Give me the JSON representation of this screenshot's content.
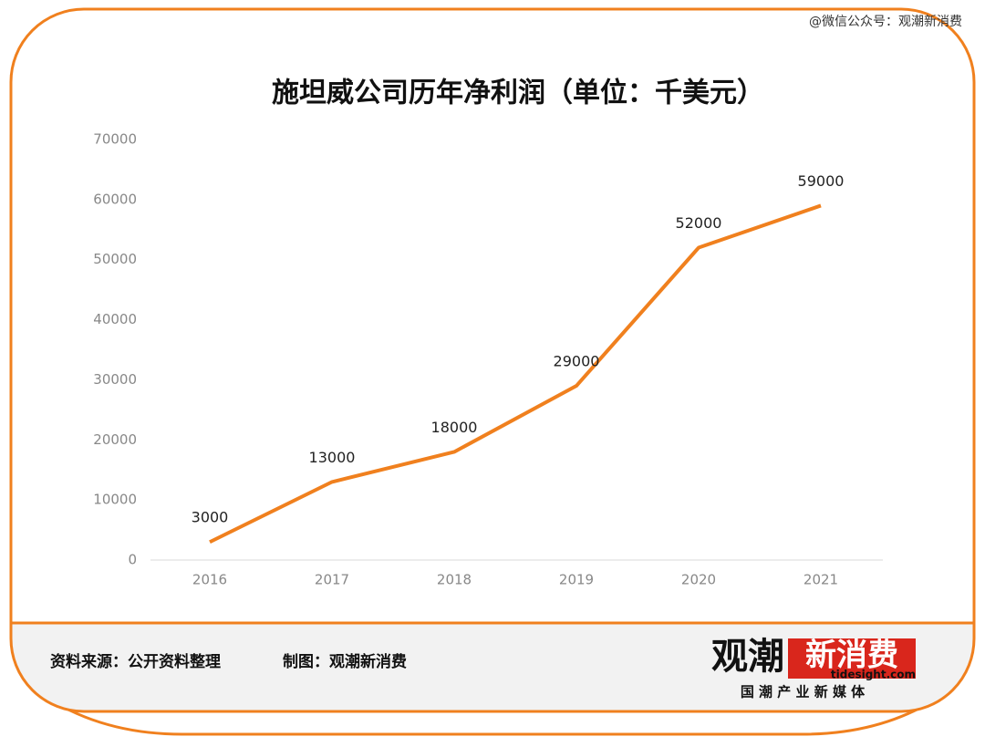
{
  "chart_data": {
    "type": "line",
    "title": "施坦威公司历年净利润（单位：千美元）",
    "categories": [
      "2016",
      "2017",
      "2018",
      "2019",
      "2020",
      "2021"
    ],
    "values": [
      3000,
      13000,
      18000,
      29000,
      52000,
      59000
    ],
    "color": "#f0801e",
    "ylim": [
      0,
      70000
    ],
    "yticks": [
      0,
      10000,
      20000,
      30000,
      40000,
      50000,
      60000,
      70000
    ],
    "grid": false
  },
  "watermark": "@微信公众号：观潮新消费",
  "footer": {
    "source": "资料来源：公开资料整理",
    "credit": "制图：观潮新消费"
  },
  "logo": {
    "name_black": "观潮",
    "name_red": "新消费",
    "domain": "tidesight.com",
    "slogan": "国 潮 产 业 新 媒 体"
  }
}
